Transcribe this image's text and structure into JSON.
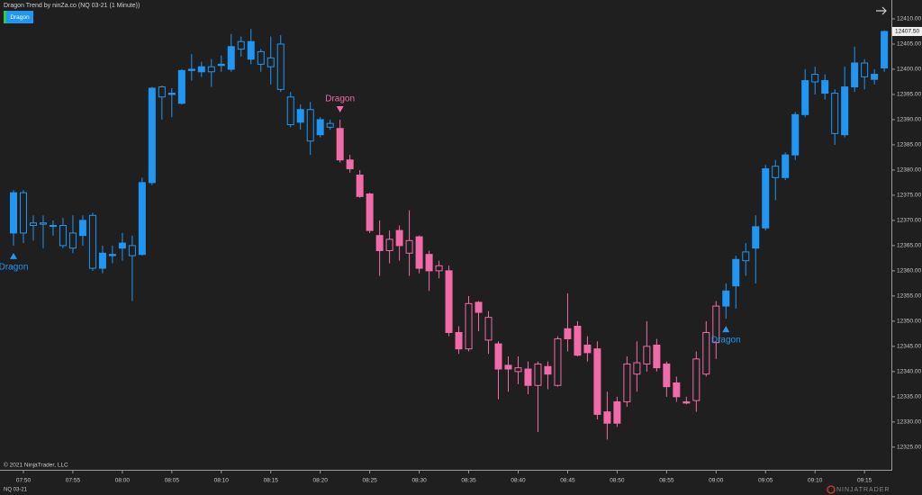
{
  "chart_data": {
    "type": "candlestick",
    "title": "Dragon Trend by ninZa.co (NQ 03-21 (1 Minute))",
    "button": "Dragon",
    "copyright": "© 2021 NinjaTrader, LLC",
    "instrument": "NQ 03-21",
    "logo": "NINJATRADER",
    "last_close_label": "12407.50",
    "annotations": [
      {
        "text": "Dragon"
      },
      {
        "text": "Dragon"
      },
      {
        "text": "Dragon"
      }
    ],
    "up_color": "#2196f3",
    "down_color": "#f06ba8",
    "categories": [
      null,
      "07:50",
      null,
      null,
      null,
      null,
      "07:55",
      null,
      null,
      null,
      null,
      "08:00",
      null,
      null,
      null,
      null,
      "08:05",
      null,
      null,
      null,
      null,
      "08:10",
      null,
      null,
      null,
      null,
      "08:15",
      null,
      null,
      null,
      null,
      "08:20",
      null,
      null,
      null,
      null,
      "08:25",
      null,
      null,
      null,
      null,
      "08:30",
      null,
      null,
      null,
      null,
      "08:35",
      null,
      null,
      null,
      null,
      "08:40",
      null,
      null,
      null,
      null,
      "08:45",
      null,
      null,
      null,
      null,
      "08:50",
      null,
      null,
      null,
      null,
      "08:55",
      null,
      null,
      null,
      null,
      "09:00",
      null,
      null,
      null,
      null,
      "09:05",
      null,
      null,
      null,
      null,
      "09:10",
      null,
      null,
      null,
      null,
      "09:15",
      null,
      null
    ],
    "open": [
      12367.5,
      12375.5,
      12369.5,
      12369.5,
      12369,
      12369,
      12367.5,
      12367,
      12371,
      12360.5,
      12363,
      12364.5,
      12365,
      12363.25,
      12377.5,
      12396.5,
      12395,
      12393.25,
      12399.75,
      12399.5,
      12400.5,
      12400.75,
      12400,
      12405.5,
      12402,
      12403.5,
      12402.25,
      12405,
      12394.5,
      12389.5,
      12392,
      12387,
      12389.25,
      12388.25,
      12382,
      12379,
      12375.25,
      12367,
      12364,
      12368,
      12363.5,
      12366.75,
      12363.25,
      12360,
      12360,
      12347.75,
      12344.5,
      12353.75,
      12346.25,
      12345.5,
      12341.25,
      12340,
      12340.5,
      12337.25,
      12341,
      12337.25,
      12348.5,
      12349,
      12345.25,
      12344.5,
      12332,
      12334,
      12334,
      12339.5,
      12341.5,
      12345.25,
      12341.5,
      12337.75,
      12334,
      12334.25,
      12339.5,
      12345.75,
      12353,
      12357,
      12363.75,
      12364.5,
      12368.5,
      12380.75,
      12378.5,
      12383,
      12391,
      12399,
      12395.25,
      12395.25,
      12387,
      12396.5,
      12401.25,
      12398,
      12400.25
    ],
    "high": [
      12376,
      12376,
      12371,
      12371,
      12370,
      12370.5,
      12371,
      12371,
      12371.5,
      12365,
      12365,
      12367.5,
      12367,
      12378.5,
      12396.5,
      12396.75,
      12396.25,
      12400,
      12403,
      12401.5,
      12402,
      12402.75,
      12407,
      12406.5,
      12408,
      12404,
      12406.5,
      12406.75,
      12395.5,
      12393,
      12393.5,
      12390.5,
      12390,
      12390,
      12383,
      12380,
      12375.5,
      12370,
      12368,
      12369,
      12372,
      12367,
      12364,
      12362,
      12361,
      12349,
      12355,
      12354,
      12352,
      12346,
      12343,
      12343,
      12342,
      12342,
      12342,
      12347,
      12355.5,
      12350,
      12347,
      12346,
      12336,
      12335,
      12343,
      12346,
      12350,
      12346.5,
      12342,
      12339,
      12335,
      12344,
      12350,
      12354,
      12357.5,
      12363,
      12365.5,
      12371,
      12381,
      12382,
      12383.5,
      12391.5,
      12400,
      12400.5,
      12399,
      12396,
      12400.5,
      12404.5,
      12402,
      12400,
      12407.75
    ],
    "low": [
      12365,
      12365.5,
      12366,
      12364.5,
      12367,
      12364.5,
      12363.5,
      12365,
      12360,
      12359.5,
      12361.5,
      12362,
      12354,
      12363,
      12377,
      12390,
      12390.5,
      12393,
      12397.75,
      12398.5,
      12396.5,
      12399.5,
      12399.5,
      12402.5,
      12401,
      12399.5,
      12397,
      12395.5,
      12388.5,
      12388,
      12383,
      12386.5,
      12388,
      12381.5,
      12379.5,
      12374.5,
      12367.5,
      12359,
      12361.5,
      12362,
      12359,
      12359.5,
      12356,
      12358.5,
      12347,
      12343.5,
      12344,
      12348,
      12343.5,
      12334.5,
      12336,
      12337.5,
      12335.5,
      12328,
      12336.5,
      12337,
      12344,
      12343,
      12342,
      12330.5,
      12326.5,
      12329,
      12333,
      12336,
      12340,
      12340,
      12335,
      12334,
      12333.5,
      12332,
      12339,
      12342.5,
      12350.5,
      12352.5,
      12359,
      12357.5,
      12368,
      12374,
      12378,
      12382,
      12390.5,
      12395,
      12394,
      12385,
      12386.5,
      12395.5,
      12396,
      12397,
      12399.5
    ],
    "close": [
      12375.5,
      12367.5,
      12369,
      12369.25,
      12369,
      12365,
      12364.5,
      12370,
      12360.5,
      12363.5,
      12363.25,
      12365.5,
      12363,
      12377.5,
      12396.25,
      12394.5,
      12395.25,
      12399.75,
      12400,
      12400.5,
      12399.5,
      12401,
      12404.5,
      12404,
      12405.5,
      12401,
      12400.5,
      12396,
      12389,
      12392,
      12385.75,
      12390,
      12388.5,
      12382,
      12380.25,
      12374.75,
      12368,
      12364,
      12366.25,
      12365,
      12366,
      12360.5,
      12360,
      12361,
      12347.75,
      12344.5,
      12353.5,
      12351.75,
      12350.75,
      12340.5,
      12340.5,
      12340.75,
      12337.25,
      12341.5,
      12339.5,
      12346.5,
      12346.5,
      12343.25,
      12343.75,
      12331.5,
      12329.75,
      12329.75,
      12341.5,
      12341.75,
      12345,
      12340.75,
      12337,
      12335,
      12333.75,
      12342.5,
      12347.75,
      12353,
      12356,
      12362.25,
      12362,
      12368.75,
      12380.25,
      12378.5,
      12383,
      12391,
      12397.75,
      12397.5,
      12397.75,
      12387.25,
      12396.5,
      12401.25,
      12398.5,
      12399,
      12407.5
    ],
    "colors": [
      "#2196f3",
      "#2196f3",
      "#2196f3",
      "#2196f3",
      "#2196f3",
      "#2196f3",
      "#2196f3",
      "#2196f3",
      "#2196f3",
      "#2196f3",
      "#2196f3",
      "#2196f3",
      "#2196f3",
      "#2196f3",
      "#2196f3",
      "#2196f3",
      "#2196f3",
      "#2196f3",
      "#2196f3",
      "#2196f3",
      "#2196f3",
      "#2196f3",
      "#2196f3",
      "#2196f3",
      "#2196f3",
      "#2196f3",
      "#2196f3",
      "#2196f3",
      "#2196f3",
      "#2196f3",
      "#2196f3",
      "#2196f3",
      "#2196f3",
      "#f06ba8",
      "#f06ba8",
      "#f06ba8",
      "#f06ba8",
      "#f06ba8",
      "#f06ba8",
      "#f06ba8",
      "#f06ba8",
      "#f06ba8",
      "#f06ba8",
      "#f06ba8",
      "#f06ba8",
      "#f06ba8",
      "#f06ba8",
      "#f06ba8",
      "#f06ba8",
      "#f06ba8",
      "#f06ba8",
      "#f06ba8",
      "#f06ba8",
      "#f06ba8",
      "#f06ba8",
      "#f06ba8",
      "#f06ba8",
      "#f06ba8",
      "#f06ba8",
      "#f06ba8",
      "#f06ba8",
      "#f06ba8",
      "#f06ba8",
      "#f06ba8",
      "#f06ba8",
      "#f06ba8",
      "#f06ba8",
      "#f06ba8",
      "#f06ba8",
      "#f06ba8",
      "#f06ba8",
      "#f06ba8",
      "#2196f3",
      "#2196f3",
      "#2196f3",
      "#2196f3",
      "#2196f3",
      "#2196f3",
      "#2196f3",
      "#2196f3",
      "#2196f3",
      "#2196f3",
      "#2196f3",
      "#2196f3",
      "#2196f3",
      "#2196f3",
      "#2196f3",
      "#2196f3",
      "#2196f3"
    ],
    "ylim": [
      12320.5,
      12413.75
    ],
    "yticks": [
      {
        "value": 12325,
        "label": "12325.00"
      },
      {
        "value": 12330,
        "label": "12330.00"
      },
      {
        "value": 12335,
        "label": "12335.00"
      },
      {
        "value": 12340,
        "label": "12340.00"
      },
      {
        "value": 12345,
        "label": "12345.00"
      },
      {
        "value": 12350,
        "label": "12350.00"
      },
      {
        "value": 12355,
        "label": "12355.00"
      },
      {
        "value": 12360,
        "label": "12360.00"
      },
      {
        "value": 12365,
        "label": "12365.00"
      },
      {
        "value": 12370,
        "label": "12370.00"
      },
      {
        "value": 12375,
        "label": "12375.00"
      },
      {
        "value": 12380,
        "label": "12380.00"
      },
      {
        "value": 12385,
        "label": "12385.00"
      },
      {
        "value": 12390,
        "label": "12390.00"
      },
      {
        "value": 12395,
        "label": "12395.00"
      },
      {
        "value": 12400,
        "label": "12400.00"
      },
      {
        "value": 12405,
        "label": "12405.00"
      },
      {
        "value": 12410,
        "label": "12410.00"
      }
    ]
  }
}
